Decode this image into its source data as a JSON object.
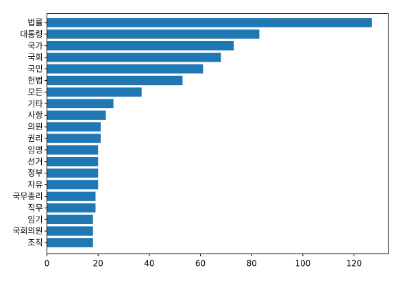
{
  "chart_data": {
    "type": "bar",
    "orientation": "horizontal",
    "title": "",
    "xlabel": "",
    "ylabel": "",
    "categories": [
      "법률",
      "대통령",
      "국가",
      "국회",
      "국민",
      "헌법",
      "모든",
      "기타",
      "사항",
      "의원",
      "권리",
      "임명",
      "선거",
      "정부",
      "자유",
      "국무총리",
      "직무",
      "임기",
      "국회의원",
      "조직"
    ],
    "values": [
      127,
      83,
      73,
      68,
      61,
      53,
      37,
      26,
      23,
      21,
      21,
      20,
      20,
      20,
      20,
      19,
      19,
      18,
      18,
      18
    ],
    "xlim": [
      0,
      133.35
    ],
    "xticks": [
      0,
      20,
      40,
      60,
      80,
      100,
      120
    ],
    "grid": false,
    "bar_color": "#1f77b4"
  }
}
